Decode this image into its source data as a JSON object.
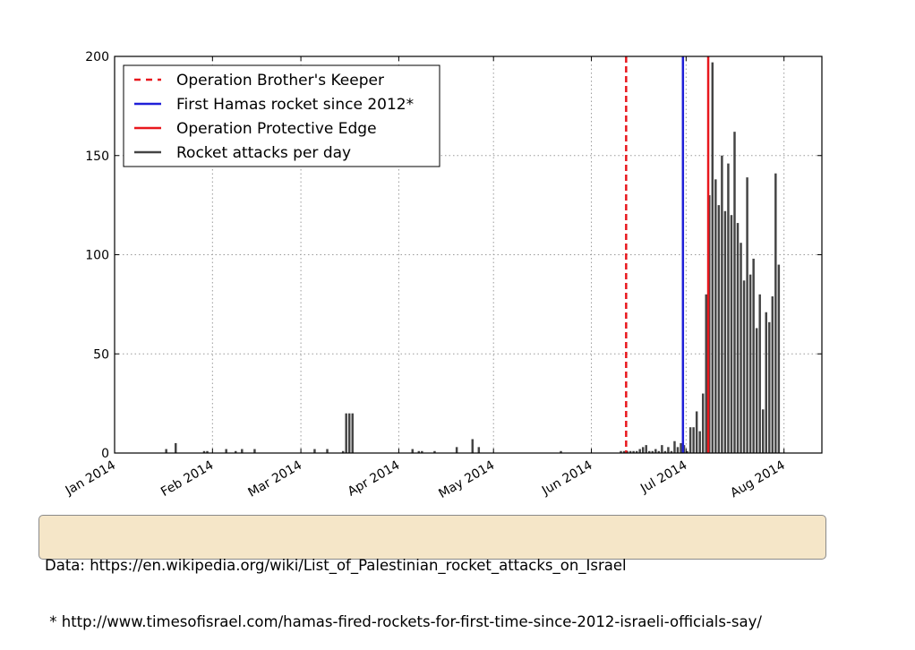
{
  "chart_data": {
    "type": "bar",
    "title": "",
    "xlabel": "",
    "ylabel": "",
    "ylim": [
      0,
      200
    ],
    "yticks": [
      0,
      50,
      100,
      150,
      200
    ],
    "xlim": [
      "2014-01-01",
      "2014-08-13"
    ],
    "xticks": [
      {
        "date": "2014-01-01",
        "label": "Jan 2014"
      },
      {
        "date": "2014-02-01",
        "label": "Feb 2014"
      },
      {
        "date": "2014-03-01",
        "label": "Mar 2014"
      },
      {
        "date": "2014-04-01",
        "label": "Apr 2014"
      },
      {
        "date": "2014-05-01",
        "label": "May 2014"
      },
      {
        "date": "2014-06-01",
        "label": "Jun 2014"
      },
      {
        "date": "2014-07-01",
        "label": "Jul 2014"
      },
      {
        "date": "2014-08-01",
        "label": "Aug 2014"
      }
    ],
    "grid": true,
    "legend_position": "top-left",
    "series": [
      {
        "name": "Rocket attacks per day",
        "color": "#444444",
        "points": [
          [
            "2014-01-17",
            2
          ],
          [
            "2014-01-20",
            5
          ],
          [
            "2014-01-29",
            1
          ],
          [
            "2014-01-30",
            1
          ],
          [
            "2014-02-05",
            2
          ],
          [
            "2014-02-08",
            1
          ],
          [
            "2014-02-10",
            2
          ],
          [
            "2014-02-14",
            2
          ],
          [
            "2014-03-05",
            2
          ],
          [
            "2014-03-09",
            2
          ],
          [
            "2014-03-14",
            1
          ],
          [
            "2014-03-15",
            20
          ],
          [
            "2014-03-16",
            20
          ],
          [
            "2014-03-17",
            20
          ],
          [
            "2014-04-05",
            2
          ],
          [
            "2014-04-07",
            1
          ],
          [
            "2014-04-08",
            1
          ],
          [
            "2014-04-12",
            1
          ],
          [
            "2014-04-19",
            3
          ],
          [
            "2014-04-24",
            7
          ],
          [
            "2014-04-26",
            3
          ],
          [
            "2014-05-22",
            1
          ],
          [
            "2014-06-10",
            1
          ],
          [
            "2014-06-11",
            1
          ],
          [
            "2014-06-12",
            1
          ],
          [
            "2014-06-13",
            1
          ],
          [
            "2014-06-14",
            1
          ],
          [
            "2014-06-15",
            1
          ],
          [
            "2014-06-16",
            2
          ],
          [
            "2014-06-17",
            3
          ],
          [
            "2014-06-18",
            4
          ],
          [
            "2014-06-19",
            1
          ],
          [
            "2014-06-20",
            1
          ],
          [
            "2014-06-21",
            2
          ],
          [
            "2014-06-22",
            1
          ],
          [
            "2014-06-23",
            4
          ],
          [
            "2014-06-24",
            1
          ],
          [
            "2014-06-25",
            3
          ],
          [
            "2014-06-26",
            1
          ],
          [
            "2014-06-27",
            6
          ],
          [
            "2014-06-28",
            3
          ],
          [
            "2014-06-29",
            5
          ],
          [
            "2014-06-30",
            4
          ],
          [
            "2014-07-01",
            1
          ],
          [
            "2014-07-02",
            13
          ],
          [
            "2014-07-03",
            13
          ],
          [
            "2014-07-04",
            21
          ],
          [
            "2014-07-05",
            11
          ],
          [
            "2014-07-06",
            30
          ],
          [
            "2014-07-07",
            80
          ],
          [
            "2014-07-08",
            130
          ],
          [
            "2014-07-09",
            197
          ],
          [
            "2014-07-10",
            138
          ],
          [
            "2014-07-11",
            125
          ],
          [
            "2014-07-12",
            150
          ],
          [
            "2014-07-13",
            122
          ],
          [
            "2014-07-14",
            146
          ],
          [
            "2014-07-15",
            120
          ],
          [
            "2014-07-16",
            162
          ],
          [
            "2014-07-17",
            116
          ],
          [
            "2014-07-18",
            106
          ],
          [
            "2014-07-19",
            87
          ],
          [
            "2014-07-20",
            139
          ],
          [
            "2014-07-21",
            90
          ],
          [
            "2014-07-22",
            98
          ],
          [
            "2014-07-23",
            63
          ],
          [
            "2014-07-24",
            80
          ],
          [
            "2014-07-25",
            22
          ],
          [
            "2014-07-26",
            71
          ],
          [
            "2014-07-27",
            66
          ],
          [
            "2014-07-28",
            79
          ],
          [
            "2014-07-29",
            141
          ],
          [
            "2014-07-30",
            95
          ]
        ]
      }
    ],
    "vlines": [
      {
        "name": "Operation Brother's Keeper",
        "date": "2014-06-12",
        "color": "#e8171d",
        "style": "dashed"
      },
      {
        "name": "First Hamas rocket since 2012*",
        "date": "2014-06-30",
        "color": "#1f1fd8",
        "style": "solid"
      },
      {
        "name": "Operation Protective Edge",
        "date": "2014-07-08",
        "color": "#e8171d",
        "style": "solid"
      }
    ]
  },
  "footnote": {
    "line1": "Data: https://en.wikipedia.org/wiki/List_of_Palestinian_rocket_attacks_on_Israel",
    "line2": " * http://www.timesofisrael.com/hamas-fired-rockets-for-first-time-since-2012-israeli-officials-say/"
  }
}
